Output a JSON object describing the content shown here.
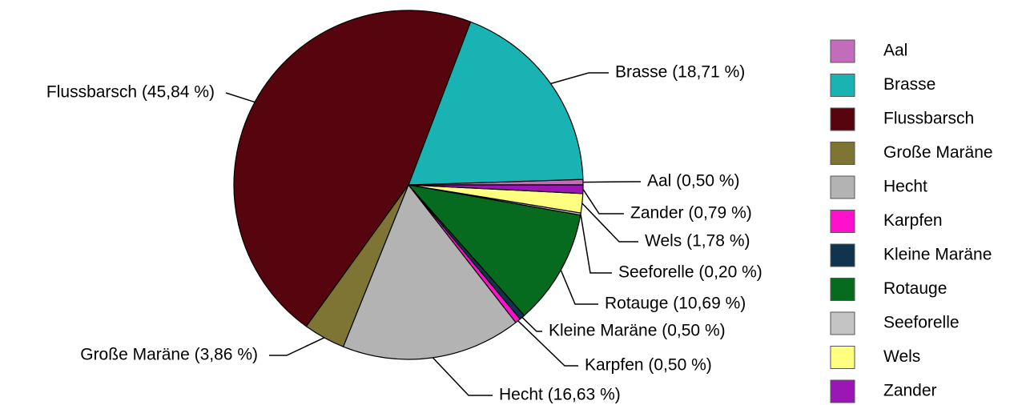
{
  "chart_data": {
    "type": "pie",
    "categories": [
      "Aal",
      "Brasse",
      "Flussbarsch",
      "Große Maräne",
      "Hecht",
      "Karpfen",
      "Kleine Maräne",
      "Rotauge",
      "Seeforelle",
      "Wels",
      "Zander"
    ],
    "values": [
      0.5,
      18.71,
      45.84,
      3.86,
      16.63,
      0.5,
      0.5,
      10.69,
      0.2,
      1.78,
      0.79
    ],
    "value_labels": [
      "Aal (0,50 %)",
      "Brasse (18,71 %)",
      "Flussbarsch (45,84 %)",
      "Große Maräne (3,86 %)",
      "Hecht (16,63 %)",
      "Karpfen (0,50 %)",
      "Kleine Maräne (0,50 %)",
      "Rotauge (10,69 %)",
      "Seeforelle (0,20 %)",
      "Wels (1,78 %)",
      "Zander (0,79 %)"
    ],
    "colors": [
      "#c36cbb",
      "#19b3b3",
      "#56040e",
      "#7e7434",
      "#b3b3b3",
      "#ff10cc",
      "#10344d",
      "#066b1e",
      "#c4c4c4",
      "#ffff80",
      "#9b17b5"
    ],
    "legend": "right"
  }
}
